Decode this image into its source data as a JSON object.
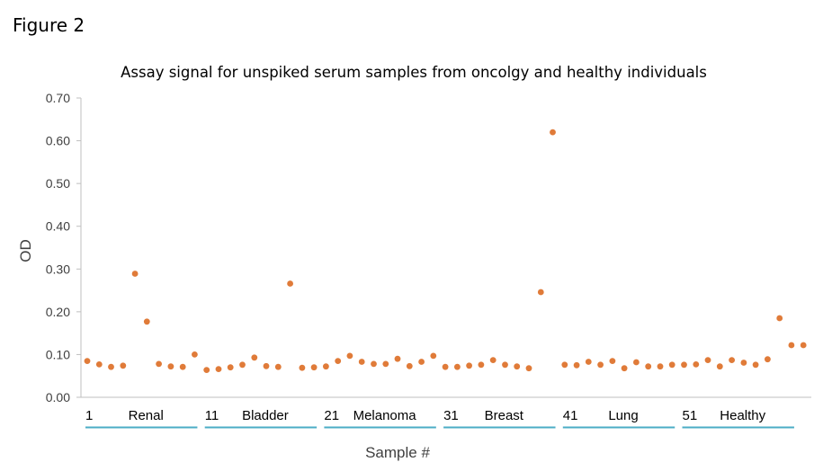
{
  "figure_label": "Figure 2",
  "chart_data": {
    "type": "scatter",
    "title": "Assay signal for unspiked serum samples from oncolgy and healthy individuals",
    "xlabel": "Sample #",
    "ylabel": "OD",
    "ylim": [
      0,
      0.7
    ],
    "xlim": [
      1,
      61
    ],
    "yticks": [
      "0.00",
      "0.10",
      "0.20",
      "0.30",
      "0.40",
      "0.50",
      "0.60",
      "0.70"
    ],
    "grid": false,
    "legend": "none",
    "marker_color": "#E07B39",
    "axis_color": "#BFBFBF",
    "group_line_color": "#4BACC6",
    "groups": [
      {
        "start": "1",
        "name": "Renal",
        "from": 1,
        "to": 10
      },
      {
        "start": "11",
        "name": "Bladder",
        "from": 11,
        "to": 20
      },
      {
        "start": "21",
        "name": "Melanoma",
        "from": 21,
        "to": 30
      },
      {
        "start": "31",
        "name": "Breast",
        "from": 31,
        "to": 40
      },
      {
        "start": "41",
        "name": "Lung",
        "from": 41,
        "to": 50
      },
      {
        "start": "51",
        "name": "Healthy",
        "from": 51,
        "to": 60
      }
    ],
    "series": [
      {
        "x": [
          1,
          2,
          3,
          4,
          5,
          6,
          7,
          8,
          9,
          10,
          11,
          12,
          13,
          14,
          15,
          16,
          17,
          18,
          19,
          20,
          21,
          22,
          23,
          24,
          25,
          26,
          27,
          28,
          29,
          30,
          31,
          32,
          33,
          34,
          35,
          36,
          37,
          38,
          39,
          40,
          41,
          42,
          43,
          44,
          45,
          46,
          47,
          48,
          49,
          50,
          51,
          52,
          53,
          54,
          55,
          56,
          57,
          58,
          59,
          60,
          61
        ],
        "values": [
          0.085,
          0.077,
          0.071,
          0.074,
          0.289,
          0.177,
          0.078,
          0.072,
          0.071,
          0.1,
          0.064,
          0.066,
          0.07,
          0.076,
          0.093,
          0.073,
          0.071,
          0.266,
          0.069,
          0.07,
          0.072,
          0.085,
          0.097,
          0.083,
          0.078,
          0.078,
          0.09,
          0.073,
          0.083,
          0.097,
          0.071,
          0.071,
          0.074,
          0.076,
          0.087,
          0.076,
          0.072,
          0.068,
          0.246,
          0.62,
          0.076,
          0.075,
          0.083,
          0.076,
          0.085,
          0.068,
          0.082,
          0.072,
          0.072,
          0.076,
          0.076,
          0.077,
          0.087,
          0.072,
          0.087,
          0.081,
          0.076,
          0.089,
          0.185,
          0.122,
          0.122
        ]
      }
    ]
  }
}
